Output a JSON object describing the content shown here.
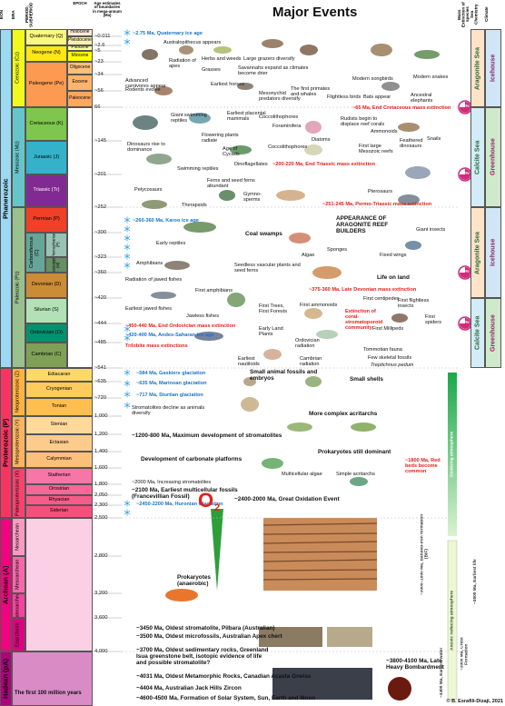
{
  "title": "Major Events",
  "headers": {
    "eon": "EON",
    "era": "ERA",
    "period": "PERIOD, SUBPERIOD",
    "epoch": "EPOCH",
    "age": "Age estimates of boundaries in mega-annum (Ma)",
    "extinction": "Mass Extinction of species",
    "sea": "Sea Chemistry",
    "climate": "Climate"
  },
  "eons": [
    "Phanerozoic",
    "Proterozoic (P)",
    "Archean (A)",
    "Hadean (pA)"
  ],
  "eras": [
    "Cenozoic (Cz)",
    "Mesozoic (Mz)",
    "Paleozoic (Pz)",
    "Neoproterozoic (Z)",
    "Mesoproterozoic (Y)",
    "Paleoproterozoic (X)",
    "Neoarchean",
    "Mesoarchean",
    "Paleoarchean",
    "Eoarchean"
  ],
  "periods": [
    "Quaternary (Q)",
    "Neogene (N)",
    "Paleogene (Pe)",
    "Cretaceous (K)",
    "Jurassic (J)",
    "Triassic (Tr)",
    "Permian (P)",
    "Carboniferous (C)",
    "Devonian (D)",
    "Silurian (S)",
    "Ordovician (O)",
    "Cambrian (C)",
    "Ediacaran",
    "Cryogenian",
    "Tonian",
    "Stenian",
    "Ectasian",
    "Calymmian",
    "Statherian",
    "Orosirian",
    "Rhyacian",
    "Siderian"
  ],
  "subperiods": [
    "Pennsylvanian (P)",
    "Mississippian (M)"
  ],
  "epochs": [
    "Holocene",
    "Pleistocene",
    "Pliocene",
    "Miocene",
    "Oligocene",
    "Eocene",
    "Paleocene"
  ],
  "ages": [
    "~0.011",
    "~2.6",
    "~5",
    "~23",
    "~34",
    "~56",
    "66",
    "~145",
    "~201",
    "~252",
    "~300",
    "~323",
    "~360",
    "~420",
    "~444",
    "~485",
    "~541",
    "~635",
    "~720",
    "1,000",
    "1,200",
    "1,400",
    "1,600",
    "1,800",
    "2,050",
    "2,300",
    "2,500",
    "2,800",
    "3,200",
    "3,600",
    "4,000"
  ],
  "extinctions": [
    "76%",
    "80%",
    "75%",
    "86%"
  ],
  "sea_chemistry": [
    "Aragonite Sea",
    "Calcite Sea",
    "Aragonite Sea",
    "Calcite Sea"
  ],
  "climate": [
    "Icehouse",
    "Greenhouse",
    "Icehouse",
    "Greenhouse"
  ],
  "events": [
    "~2.75 Ma, Quaternary ice age",
    "Australopithecus appears",
    "Radiation of apes",
    "Herbs and weeds",
    "Grasses",
    "Large grazers diversify",
    "Savannahs expand as climates become drier",
    "Modern songbirds",
    "Modern snakes",
    "Advanced carnivores appear",
    "Rodents evolve",
    "Earliest horses",
    "Mesonychid predators diversify",
    "The first primates and whales",
    "Flightless birds",
    "Bats appear",
    "Ancestral elephants",
    "Giant swimming reptiles",
    "Earliest placental mammals",
    "Coccolithophores",
    "Foraminifera",
    "~65 Ma, End Cretaceous mass extinction",
    "Rudists begin to displace reef corals",
    "Ammonoids",
    "Snails",
    "Dinosaurs rise to dominance",
    "Flowering plants radiate",
    "Age of Cycads",
    "Coccolithophores",
    "Diatoms",
    "First large Mesozoic reefs",
    "Feathered dinosaurs",
    "Swimming reptiles",
    "Dinoflagellates",
    "~200-220 Ma, End Triassic mass extinction",
    "Ferns and seed ferns abundant",
    "Pterosaurs",
    "Pelycosaurs",
    "Therapsids",
    "Gymno-sperms",
    "~251-245 Ma, Permo-Triassic mass extinction",
    "~260-360 Ma, Karoo ice age",
    "Coal swamps",
    "APPEARANCE OF ARAGONITE REEF BUILDERS",
    "Giant insects",
    "Early reptiles",
    "Algae",
    "Sponges",
    "Fixed wings",
    "Amphibians",
    "Seedless vascular plants and seed ferns",
    "Life on land",
    "Radiation of jawed fishes",
    "First amphibians",
    "~375-360 Ma, Late Devonian mass extinction",
    "First ammonoids",
    "First centipedes",
    "First flightless insects",
    "Earliest jawed fishes",
    "Jawless fishes",
    "First Trees, First Forests",
    "Extinction of coral-stromatoporoid community",
    "First spiders",
    "First Millipeds",
    "Early Land Plants",
    "~450-440 Ma, End Ordovician mass extinction",
    "~420-400 Ma, Andes-Saharan ice age",
    "Ordovician radiation",
    "Trilobite mass extinctions",
    "Earliest nautiloids",
    "Cambrian radiation",
    "Tommotian fauna",
    "Few skeletal fossils",
    "Treptichnus pedum",
    "~584 Ma, Gaskiers glaciation",
    "Small animal fossils and embryos",
    "Small shells",
    "~635 Ma, Marinoan glaciation",
    "~717 Ma, Sturtian glaciation",
    "Stromatolites decline as animals diversify",
    "More complex acritarchs",
    "~1200-800 Ma, Maximum development of stromatolites",
    "Development of carbonate platforms",
    "Prokaryotes still dominant",
    "~1800 Ma, Red beds become common",
    "Multicellular algae",
    "Simple acritarchs",
    "~2000 Ma, Increasing stromatolites",
    "~2100 Ma, Earliest multicellular fossils (Francevillian Fossil)",
    "~2450-2200 Ma, Huronian Glaciation",
    "~2400-2000 Ma, Great Oxidation Event",
    "Prokaryotes (anaerobic)",
    "~3450 Ma, Oldest stromatolite, Pilbara (Australian)",
    "~3500 Ma, Oldest microfossils, Australian Apex chert",
    "~3700 Ma, Oldest sedimentary rocks, Greenland Isua greenstone belt, isotopic evidence of life and possible stromatolite?",
    "~3800-4100 Ma, Late Heavy Bombardment",
    "~4031 Ma, Oldest Metamorphic Rocks, Canadian Acasta Gneiss",
    "~4404 Ma, Australian Jack Hills Zircon",
    "~4600-4500 Ma, Formation of Solar System, Sun, Earth and Moon"
  ],
  "side_notes": [
    "Bacteria and Acritarcha (prokaryotes)",
    "~3000–1800 Ma, Banded-iron formation (BIF)",
    "Oxidizing atmosphere",
    "Anoxic reducing atmosphere",
    "~3500 Ma, Earliest life",
    "~3000 Ma, Crust Formation",
    "~4400 Ma, Earliest water"
  ],
  "o2": {
    "symbol": "O",
    "subscript": "2"
  },
  "hadean_note": "The first 100 million years",
  "credit": "© B. Esrafili-Dizaji, 2021"
}
